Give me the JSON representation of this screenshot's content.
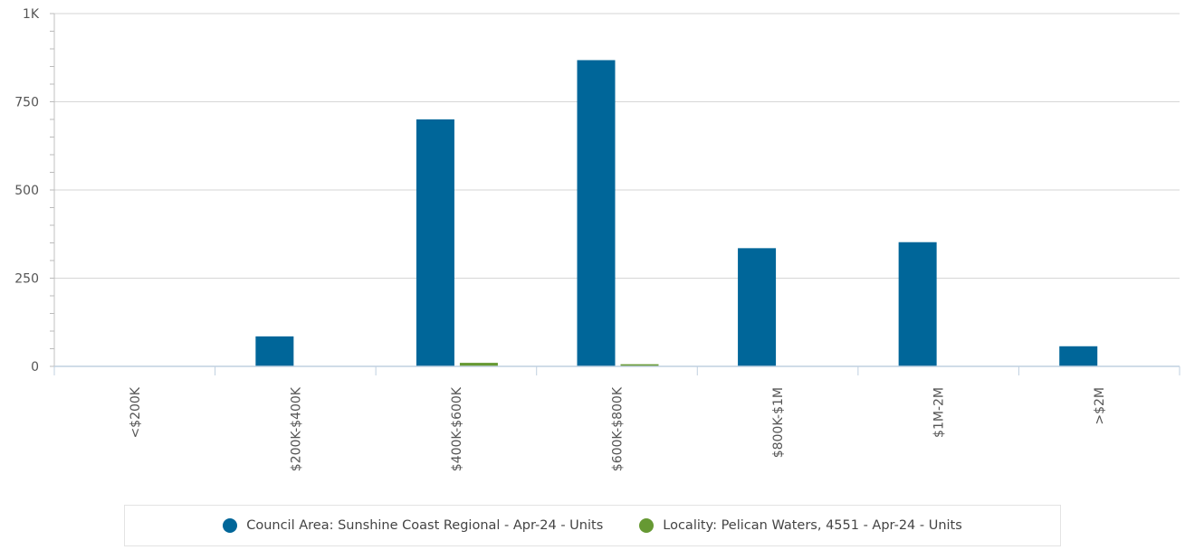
{
  "chart_data": {
    "type": "bar",
    "categories": [
      "<$200K",
      "$200K-$400K",
      "$400K-$600K",
      "$600K-$800K",
      "$800K-$1M",
      "$1M-2M",
      ">$2M"
    ],
    "series": [
      {
        "name": "Council Area: Sunshine Coast Regional - Apr-24 - Units",
        "color": "#006699",
        "values": [
          0,
          85,
          700,
          868,
          335,
          352,
          57
        ]
      },
      {
        "name": "Locality: Pelican Waters, 4551 - Apr-24 - Units",
        "color": "#669933",
        "values": [
          0,
          0,
          10,
          6,
          0,
          0,
          0
        ]
      }
    ],
    "ylim": [
      0,
      1000
    ],
    "yticks": [
      0,
      250,
      500,
      750,
      1000
    ],
    "ytick_labels": [
      "0",
      "250",
      "500",
      "750",
      "1K"
    ],
    "grid": true,
    "legend_position": "bottom",
    "title": "",
    "xlabel": "",
    "ylabel": ""
  },
  "legend": {
    "items": [
      {
        "label": "Council Area: Sunshine Coast Regional - Apr-24 - Units",
        "color": "#006699"
      },
      {
        "label": "Locality: Pelican Waters, 4551 - Apr-24 - Units",
        "color": "#669933"
      }
    ]
  }
}
